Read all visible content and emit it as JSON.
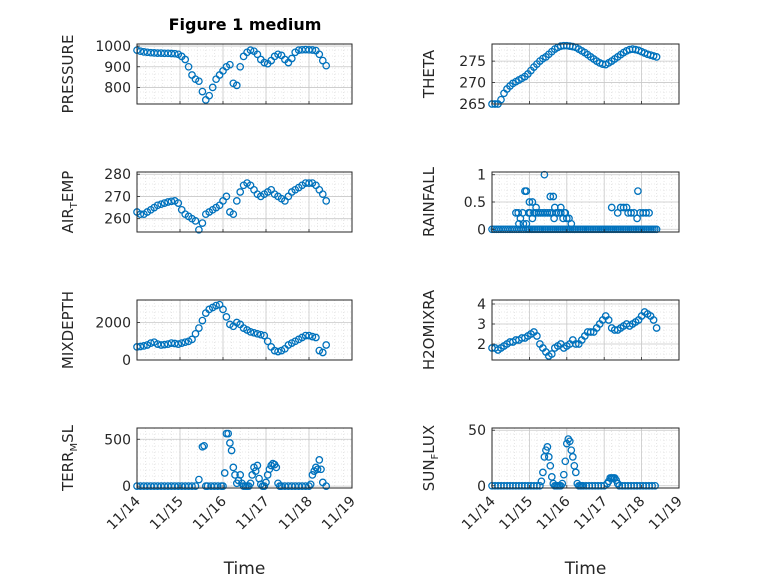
{
  "figure": {
    "title": "Figure 1 medium",
    "marker_color": "#0072BD"
  },
  "chart_data": [
    {
      "id": "pressure",
      "type": "scatter",
      "ylabel": "PRESSURE",
      "ylim": [
        720,
        1010
      ],
      "yticks": [
        800,
        900,
        1000
      ],
      "xlim": [
        0,
        5
      ],
      "grid": true,
      "x": [
        0,
        0.08,
        0.16,
        0.24,
        0.32,
        0.4,
        0.48,
        0.56,
        0.64,
        0.72,
        0.8,
        0.88,
        0.96,
        1.04,
        1.12,
        1.2,
        1.28,
        1.36,
        1.44,
        1.52,
        1.6,
        1.68,
        1.76,
        1.84,
        1.92,
        2.0,
        2.08,
        2.16,
        2.24,
        2.32,
        2.4,
        2.48,
        2.56,
        2.64,
        2.72,
        2.8,
        2.88,
        2.96,
        3.04,
        3.12,
        3.2,
        3.28,
        3.36,
        3.44,
        3.52,
        3.6,
        3.68,
        3.76,
        3.84,
        3.92,
        4.0,
        4.08,
        4.16,
        4.24,
        4.32,
        4.4
      ],
      "y": [
        980,
        975,
        972,
        970,
        968,
        967,
        966,
        966,
        965,
        965,
        964,
        963,
        960,
        950,
        935,
        900,
        860,
        840,
        830,
        780,
        740,
        760,
        800,
        840,
        860,
        880,
        900,
        910,
        820,
        810,
        900,
        950,
        970,
        980,
        975,
        960,
        935,
        920,
        915,
        930,
        950,
        960,
        955,
        935,
        920,
        940,
        970,
        980,
        982,
        983,
        982,
        981,
        978,
        960,
        930,
        905
      ]
    },
    {
      "id": "theta",
      "type": "scatter",
      "ylabel": "THETA",
      "ylim": [
        265,
        279
      ],
      "yticks": [
        265,
        270,
        275
      ],
      "xlim": [
        0,
        5
      ],
      "grid": true,
      "x": [
        0,
        0.08,
        0.16,
        0.24,
        0.32,
        0.4,
        0.48,
        0.56,
        0.64,
        0.72,
        0.8,
        0.88,
        0.96,
        1.04,
        1.12,
        1.2,
        1.28,
        1.36,
        1.44,
        1.52,
        1.6,
        1.68,
        1.76,
        1.84,
        1.92,
        2.0,
        2.08,
        2.16,
        2.24,
        2.32,
        2.4,
        2.48,
        2.56,
        2.64,
        2.72,
        2.8,
        2.88,
        2.96,
        3.04,
        3.12,
        3.2,
        3.28,
        3.36,
        3.44,
        3.52,
        3.6,
        3.68,
        3.76,
        3.84,
        3.92,
        4.0,
        4.08,
        4.16,
        4.24,
        4.32,
        4.4
      ],
      "y": [
        265,
        265,
        265,
        266,
        267.5,
        268.5,
        269.2,
        269.8,
        270.2,
        270.6,
        271.0,
        271.4,
        272.0,
        272.8,
        273.6,
        274.3,
        275.0,
        275.6,
        276.0,
        276.6,
        277.2,
        277.8,
        278.2,
        278.5,
        278.6,
        278.6,
        278.5,
        278.4,
        278.2,
        277.8,
        277.4,
        277.0,
        276.5,
        276.0,
        275.5,
        275.0,
        274.6,
        274.3,
        274.2,
        274.6,
        275.0,
        275.5,
        276.0,
        276.5,
        277.0,
        277.4,
        277.7,
        277.8,
        277.7,
        277.5,
        277.2,
        276.9,
        276.6,
        276.4,
        276.2,
        276.0
      ]
    },
    {
      "id": "air_temp",
      "type": "scatter",
      "ylabel": "AIR",
      "ylabel_sub": "T",
      "ylabel_suffix": "EMP",
      "ylim": [
        254,
        281
      ],
      "yticks": [
        260,
        270,
        280
      ],
      "xlim": [
        0,
        5
      ],
      "grid": true,
      "x": [
        0,
        0.08,
        0.16,
        0.24,
        0.32,
        0.4,
        0.48,
        0.56,
        0.64,
        0.72,
        0.8,
        0.88,
        0.96,
        1.04,
        1.12,
        1.2,
        1.28,
        1.36,
        1.44,
        1.52,
        1.6,
        1.68,
        1.76,
        1.84,
        1.92,
        2.0,
        2.08,
        2.16,
        2.24,
        2.32,
        2.4,
        2.48,
        2.56,
        2.64,
        2.72,
        2.8,
        2.88,
        2.96,
        3.04,
        3.12,
        3.2,
        3.28,
        3.36,
        3.44,
        3.52,
        3.6,
        3.68,
        3.76,
        3.84,
        3.92,
        4.0,
        4.08,
        4.16,
        4.24,
        4.32,
        4.4
      ],
      "y": [
        263,
        262,
        262,
        263,
        264,
        265,
        266,
        266.5,
        267,
        267.5,
        267.8,
        268,
        267,
        264,
        262,
        261,
        260,
        259,
        255,
        258,
        262,
        263,
        264,
        265,
        266,
        268,
        270,
        263,
        262,
        268,
        272,
        275,
        276,
        275,
        273,
        271,
        270,
        271,
        272,
        273,
        271,
        270,
        269,
        268,
        270,
        272,
        273,
        274,
        275,
        276,
        276,
        276,
        275,
        273,
        271,
        268
      ]
    },
    {
      "id": "rainfall",
      "type": "scatter",
      "ylabel": "RAINFALL",
      "ylim": [
        -0.05,
        1.05
      ],
      "yticks": [
        0,
        0.5,
        1
      ],
      "xlim": [
        0,
        5
      ],
      "grid": true,
      "x": [
        0,
        0.06,
        0.12,
        0.18,
        0.24,
        0.3,
        0.36,
        0.42,
        0.48,
        0.54,
        0.6,
        0.66,
        0.72,
        0.78,
        0.84,
        0.9,
        0.96,
        1.0,
        1.05,
        1.1,
        1.15,
        1.2,
        1.25,
        1.3,
        1.35,
        1.4,
        1.45,
        1.5,
        1.55,
        1.6,
        1.65,
        1.7,
        1.75,
        1.8,
        1.85,
        1.9,
        1.95,
        2.0,
        2.05,
        2.1,
        2.15,
        2.2,
        2.25,
        2.3,
        2.35,
        2.4,
        2.45,
        2.5,
        2.55,
        2.6,
        2.65,
        2.7,
        2.75,
        2.8,
        2.85,
        2.9,
        2.95,
        3.0,
        3.05,
        3.1,
        3.15,
        3.2,
        3.25,
        3.3,
        3.35,
        3.4,
        3.45,
        3.5,
        3.55,
        3.6,
        3.65,
        3.7,
        3.75,
        3.8,
        3.85,
        3.9,
        3.95,
        4.0,
        4.05,
        4.1,
        4.15,
        4.2,
        4.25,
        4.3,
        4.35,
        4.4,
        0.64,
        0.7,
        0.76,
        0.82,
        0.88,
        0.92,
        0.98,
        1.02,
        1.08,
        1.12,
        1.18,
        1.24,
        1.3,
        1.36,
        1.42,
        1.48,
        1.54,
        1.6,
        1.66,
        1.72,
        1.78,
        1.84,
        1.9,
        1.96,
        0.72,
        0.84,
        0.92,
        1.0,
        1.08,
        1.18,
        1.4,
        1.56,
        1.68,
        1.84,
        1.94,
        2.0,
        2.06,
        2.12,
        2.2,
        3.36,
        3.44,
        3.52,
        3.6,
        3.64,
        3.72,
        3.8,
        3.88,
        3.96,
        4.04,
        4.12,
        4.2,
        1.64,
        3.2,
        3.9
      ],
      "y": [
        0,
        0,
        0,
        0,
        0,
        0,
        0,
        0,
        0,
        0,
        0,
        0,
        0,
        0,
        0,
        0,
        0,
        0,
        0,
        0,
        0,
        0,
        0,
        0,
        0,
        0,
        0,
        0,
        0,
        0,
        0,
        0,
        0,
        0,
        0,
        0,
        0,
        0,
        0,
        0,
        0,
        0,
        0,
        0,
        0,
        0,
        0,
        0,
        0,
        0,
        0,
        0,
        0,
        0,
        0,
        0,
        0,
        0,
        0,
        0,
        0,
        0,
        0,
        0,
        0,
        0,
        0,
        0,
        0,
        0,
        0,
        0,
        0,
        0,
        0,
        0,
        0,
        0,
        0,
        0,
        0,
        0,
        0,
        0,
        0,
        0,
        0.3,
        0.3,
        0.2,
        0.3,
        0.7,
        0.7,
        0.3,
        0.3,
        0.2,
        0.3,
        0.3,
        0.3,
        0.3,
        0.3,
        0.3,
        0.3,
        0.3,
        0.3,
        0.2,
        0.3,
        0.3,
        0.3,
        0.2,
        0.3,
        0.1,
        0.1,
        0.1,
        0.5,
        0.5,
        0.4,
        1.0,
        0.6,
        0.4,
        0.4,
        0.3,
        0.2,
        0.2,
        0.1,
        0.0,
        0.3,
        0.4,
        0.4,
        0.4,
        0.3,
        0.3,
        0.3,
        0.2,
        0.3,
        0.3,
        0.3,
        0.3,
        0.6,
        0.4,
        0.7
      ]
    },
    {
      "id": "mixdepth",
      "type": "scatter",
      "ylabel": "MIXDEPTH",
      "ylim": [
        0,
        3200
      ],
      "yticks": [
        0,
        2000
      ],
      "xlim": [
        0,
        5
      ],
      "grid": true,
      "x": [
        0,
        0.08,
        0.16,
        0.24,
        0.32,
        0.4,
        0.48,
        0.56,
        0.64,
        0.72,
        0.8,
        0.88,
        0.96,
        1.04,
        1.12,
        1.2,
        1.28,
        1.36,
        1.44,
        1.52,
        1.6,
        1.68,
        1.76,
        1.84,
        1.92,
        2.0,
        2.08,
        2.16,
        2.24,
        2.32,
        2.4,
        2.48,
        2.56,
        2.64,
        2.72,
        2.8,
        2.88,
        2.96,
        3.04,
        3.12,
        3.2,
        3.28,
        3.36,
        3.44,
        3.52,
        3.6,
        3.68,
        3.76,
        3.84,
        3.92,
        4.0,
        4.08,
        4.16,
        4.24,
        4.32,
        4.4
      ],
      "y": [
        700,
        720,
        750,
        800,
        900,
        950,
        850,
        800,
        820,
        850,
        900,
        880,
        850,
        900,
        950,
        1000,
        1100,
        1400,
        1700,
        2100,
        2500,
        2700,
        2800,
        2900,
        2950,
        2700,
        2300,
        1900,
        1800,
        2000,
        1900,
        1700,
        1600,
        1500,
        1450,
        1400,
        1350,
        1300,
        1000,
        700,
        500,
        450,
        500,
        600,
        800,
        900,
        1000,
        1100,
        1200,
        1300,
        1300,
        1250,
        1200,
        500,
        400,
        800
      ]
    },
    {
      "id": "h2omixra",
      "type": "scatter",
      "ylabel": "H2OMIXRA",
      "ylim": [
        1.2,
        4.2
      ],
      "yticks": [
        2,
        3,
        4
      ],
      "xlim": [
        0,
        5
      ],
      "grid": true,
      "x": [
        0,
        0.08,
        0.16,
        0.24,
        0.32,
        0.4,
        0.48,
        0.56,
        0.64,
        0.72,
        0.8,
        0.88,
        0.96,
        1.04,
        1.12,
        1.2,
        1.28,
        1.36,
        1.44,
        1.52,
        1.6,
        1.68,
        1.76,
        1.84,
        1.92,
        2.0,
        2.08,
        2.16,
        2.24,
        2.32,
        2.4,
        2.48,
        2.56,
        2.64,
        2.72,
        2.8,
        2.88,
        2.96,
        3.04,
        3.12,
        3.2,
        3.28,
        3.36,
        3.44,
        3.52,
        3.6,
        3.68,
        3.76,
        3.84,
        3.92,
        4.0,
        4.08,
        4.16,
        4.24,
        4.32,
        4.4
      ],
      "y": [
        1.8,
        1.8,
        1.7,
        1.8,
        1.9,
        2.0,
        2.1,
        2.1,
        2.2,
        2.2,
        2.3,
        2.3,
        2.4,
        2.5,
        2.6,
        2.4,
        2.0,
        1.8,
        1.6,
        1.4,
        1.5,
        1.8,
        1.9,
        2.0,
        1.8,
        1.9,
        2.0,
        2.2,
        2.0,
        2.0,
        2.2,
        2.4,
        2.6,
        2.6,
        2.6,
        2.8,
        3.0,
        3.2,
        3.4,
        3.2,
        2.8,
        2.7,
        2.7,
        2.8,
        2.9,
        3.0,
        2.9,
        3.0,
        3.1,
        3.2,
        3.4,
        3.6,
        3.5,
        3.4,
        3.2,
        2.8
      ]
    },
    {
      "id": "terr_msl",
      "type": "scatter",
      "ylabel": "TERR",
      "ylabel_sub": "M",
      "ylabel_suffix": "SL",
      "ylim": [
        -20,
        620
      ],
      "yticks": [
        0,
        500
      ],
      "xlim": [
        0,
        5
      ],
      "xticks": [
        0,
        1,
        2,
        3,
        4,
        5
      ],
      "xticklabels": [
        "11/14",
        "11/15",
        "11/16",
        "11/17",
        "11/18",
        "11/19"
      ],
      "xlabel": "Time",
      "grid": true,
      "x": [
        0,
        0.08,
        0.16,
        0.24,
        0.32,
        0.4,
        0.48,
        0.56,
        0.64,
        0.72,
        0.8,
        0.88,
        0.96,
        1.04,
        1.12,
        1.2,
        1.28,
        1.36,
        1.44,
        1.52,
        1.56,
        1.6,
        1.64,
        1.72,
        1.8,
        1.88,
        1.96,
        2.0,
        2.04,
        2.08,
        2.12,
        2.16,
        2.2,
        2.24,
        2.28,
        2.32,
        2.36,
        2.4,
        2.44,
        2.48,
        2.52,
        2.56,
        2.6,
        2.64,
        2.68,
        2.72,
        2.76,
        2.8,
        2.84,
        2.88,
        2.92,
        2.96,
        3.0,
        3.04,
        3.08,
        3.12,
        3.16,
        3.2,
        3.24,
        3.28,
        3.32,
        3.36,
        3.44,
        3.52,
        3.6,
        3.68,
        3.76,
        3.84,
        3.92,
        4.0,
        4.04,
        4.08,
        4.12,
        4.16,
        4.2,
        4.24,
        4.28,
        4.32,
        4.4
      ],
      "y": [
        0,
        0,
        0,
        0,
        0,
        0,
        0,
        0,
        0,
        0,
        0,
        0,
        0,
        0,
        0,
        0,
        0,
        0,
        70,
        420,
        430,
        0,
        0,
        0,
        0,
        0,
        0,
        0,
        140,
        560,
        560,
        460,
        380,
        200,
        120,
        30,
        60,
        120,
        30,
        0,
        0,
        0,
        0,
        30,
        120,
        200,
        160,
        220,
        80,
        20,
        0,
        0,
        40,
        120,
        180,
        220,
        240,
        230,
        200,
        30,
        0,
        0,
        0,
        0,
        0,
        0,
        0,
        0,
        0,
        0,
        20,
        120,
        160,
        200,
        180,
        280,
        180,
        40,
        0
      ]
    },
    {
      "id": "sun_flux",
      "type": "scatter",
      "ylabel": "SUN",
      "ylabel_sub": "F",
      "ylabel_suffix": "LUX",
      "ylim": [
        -2,
        52
      ],
      "yticks": [
        0,
        50
      ],
      "xlim": [
        0,
        5
      ],
      "xticks": [
        0,
        1,
        2,
        3,
        4,
        5
      ],
      "xticklabels": [
        "11/14",
        "11/15",
        "11/16",
        "11/17",
        "11/18",
        "11/19"
      ],
      "xlabel": "Time",
      "grid": true,
      "x": [
        0,
        0.08,
        0.16,
        0.24,
        0.32,
        0.4,
        0.48,
        0.56,
        0.64,
        0.72,
        0.8,
        0.88,
        0.96,
        1.04,
        1.12,
        1.2,
        1.28,
        1.32,
        1.36,
        1.4,
        1.44,
        1.48,
        1.52,
        1.56,
        1.6,
        1.64,
        1.68,
        1.72,
        1.76,
        1.8,
        1.84,
        1.88,
        1.92,
        1.96,
        2.0,
        2.04,
        2.08,
        2.12,
        2.16,
        2.2,
        2.24,
        2.28,
        2.32,
        2.36,
        2.4,
        2.44,
        2.52,
        2.6,
        2.68,
        2.76,
        2.84,
        2.92,
        3.0,
        3.08,
        3.12,
        3.16,
        3.2,
        3.24,
        3.28,
        3.32,
        3.36,
        3.4,
        3.48,
        3.56,
        3.64,
        3.72,
        3.8,
        3.88,
        3.96,
        4.04,
        4.12,
        4.2,
        4.28,
        4.36
      ],
      "y": [
        0,
        0,
        0,
        0,
        0,
        0,
        0,
        0,
        0,
        0,
        0,
        0,
        0,
        0,
        0,
        0,
        0,
        4,
        12,
        26,
        32,
        35,
        26,
        18,
        8,
        2,
        0,
        0,
        0,
        0,
        0,
        2,
        10,
        22,
        38,
        42,
        40,
        32,
        26,
        18,
        12,
        2,
        0,
        0,
        0,
        0,
        0,
        0,
        0,
        0,
        0,
        0,
        0,
        2,
        4,
        7,
        7,
        7,
        7,
        5,
        2,
        0,
        0,
        0,
        0,
        0,
        0,
        0,
        0,
        0,
        0,
        0,
        0,
        0
      ]
    }
  ]
}
